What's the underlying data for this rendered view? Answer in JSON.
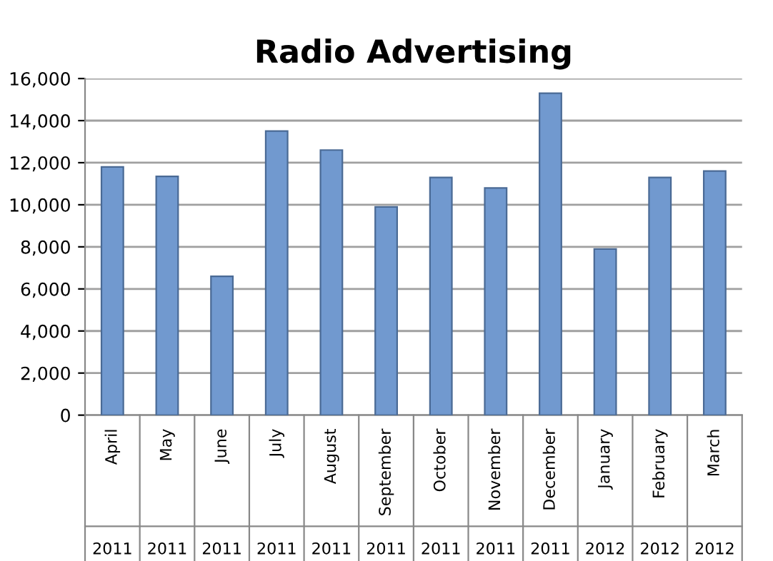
{
  "chart_data": {
    "type": "bar",
    "title": "Radio Advertising",
    "categories": [
      "April\n2011",
      "May\n2011",
      "June\n2011",
      "July\n2011",
      "August\n2011",
      "September\n2011",
      "October\n2011",
      "November\n2011",
      "December\n2011",
      "January\n2012",
      "February\n2012",
      "March\n2012"
    ],
    "values": [
      11800,
      11350,
      6600,
      13500,
      12600,
      9900,
      11300,
      10800,
      15300,
      7900,
      11300,
      11600
    ],
    "color": "#7199cf",
    "ylim": [
      0,
      16000
    ],
    "yticks": [
      {
        "value": 0,
        "label": "0"
      },
      {
        "value": 2000,
        "label": "2,000"
      },
      {
        "value": 4000,
        "label": "4,000"
      },
      {
        "value": 6000,
        "label": "6,000"
      },
      {
        "value": 8000,
        "label": "8,000"
      },
      {
        "value": 10000,
        "label": "10,000"
      },
      {
        "value": 12000,
        "label": "12,000"
      },
      {
        "value": 14000,
        "label": "14,000"
      },
      {
        "value": 16000,
        "label": "16,000"
      }
    ],
    "grid": "y"
  }
}
